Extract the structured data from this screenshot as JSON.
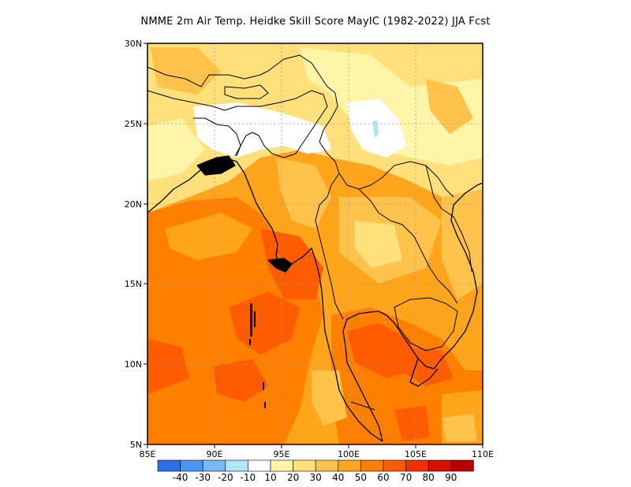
{
  "title": "NMME 2m Air Temp. Heidke Skill Score MayIC (1982-2022) JJA Fcst",
  "lat_ticks": [
    "30N",
    "25N",
    "20N",
    "15N",
    "10N",
    "5N"
  ],
  "lon_ticks": [
    "85E",
    "90E",
    "95E",
    "100E",
    "105E",
    "110E"
  ],
  "lon_range": [
    85,
    110
  ],
  "lat_range": [
    5,
    30
  ],
  "colorbar": {
    "colors": [
      "#2c6fe6",
      "#4a95f0",
      "#7ab7f5",
      "#b2e6f7",
      "#ffffff",
      "#fff5a8",
      "#ffe07a",
      "#ffc24a",
      "#ffa51c",
      "#ff8000",
      "#ff5c00",
      "#f03000",
      "#d81000",
      "#b80000"
    ],
    "labels": [
      "-40",
      "-30",
      "-20",
      "-10",
      "10",
      "20",
      "30",
      "40",
      "50",
      "60",
      "70",
      "80",
      "90"
    ]
  },
  "colors": {
    "land_high": "#ffc24a",
    "bay_of_bengal": "#ff8000",
    "andaman_sea": "#ff5c00",
    "low_skill": "#ffffff"
  }
}
